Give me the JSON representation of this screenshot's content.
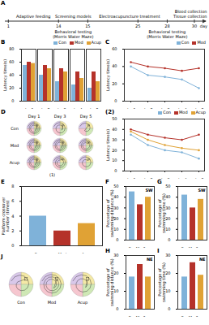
{
  "figure": {
    "timeline": {
      "label": "A",
      "stages": [
        [
          "Adaptive feeding"
        ],
        [
          "Screening models"
        ],
        [
          "Electroacupuncture treatment"
        ],
        [
          "Blood collection",
          "Tissue collection"
        ]
      ],
      "days": [
        "1",
        "14",
        "15",
        "25",
        "28",
        "30"
      ],
      "unit": "day",
      "testing": [
        [
          "Behavioral testing",
          "(Morris Water Maze)"
        ],
        [
          "Behavioral testing",
          "(Morris Water Maze)"
        ]
      ]
    },
    "paths_D": {
      "label": "D",
      "sublabel": "(1)",
      "groups": [
        "Con",
        "Mod",
        "Acup"
      ],
      "days": [
        "Day 1",
        "Day 3",
        "Day 5"
      ]
    },
    "paths_J": {
      "label": "J",
      "groups": [
        "Con",
        "Mod",
        "Acup"
      ]
    }
  },
  "chart_data": [
    {
      "label": "B",
      "type": "bar",
      "y_label": "Latency time(s)",
      "categories": [
        "day1",
        "day2",
        "day3",
        "day4",
        "day5"
      ],
      "series": [
        {
          "name": "Con",
          "color": "#7fb2d9",
          "values": [
            55,
            40,
            30,
            25,
            20
          ]
        },
        {
          "name": "Mod",
          "color": "#b5322a",
          "values": [
            60,
            55,
            50,
            45,
            45
          ]
        },
        {
          "name": "Acup",
          "color": "#e0a235",
          "values": [
            58,
            50,
            45,
            35,
            30
          ]
        }
      ],
      "ylim": [
        0,
        80
      ],
      "yticks": [
        0,
        20,
        40,
        60,
        80
      ],
      "grid": false,
      "legend": "top-right"
    },
    {
      "label": "C",
      "type": "line",
      "y_label": "Latency time(s)",
      "categories": [
        "day1",
        "day2",
        "day3",
        "day4",
        "day5"
      ],
      "series": [
        {
          "name": "Con",
          "color": "#7fb2d9",
          "values": [
            40,
            30,
            28,
            25,
            15
          ]
        },
        {
          "name": "Mod",
          "color": "#b5322a",
          "values": [
            45,
            40,
            38,
            35,
            38
          ]
        }
      ],
      "ylim": [
        0,
        60
      ],
      "yticks": [
        0,
        20,
        40,
        60
      ],
      "grid": false,
      "legend": "top-right"
    },
    {
      "label": "(2)",
      "type": "line",
      "y_label": "Latency time(s)",
      "categories": [
        "day1",
        "day2",
        "day3",
        "day4",
        "day5"
      ],
      "series": [
        {
          "name": "Con",
          "color": "#7fb2d9",
          "values": [
            35,
            25,
            20,
            18,
            12
          ]
        },
        {
          "name": "Mod",
          "color": "#b5322a",
          "values": [
            40,
            35,
            32,
            30,
            35
          ]
        },
        {
          "name": "Acup",
          "color": "#e0a235",
          "values": [
            38,
            30,
            25,
            22,
            20
          ]
        }
      ],
      "ylim": [
        0,
        50
      ],
      "yticks": [
        0,
        10,
        20,
        30,
        40,
        50
      ],
      "grid": false,
      "legend": "top-right"
    },
    {
      "label": "E",
      "type": "bar",
      "y_label": "Platform crossover number (times)",
      "categories": [
        "Con",
        "Mod",
        "Acup"
      ],
      "values": [
        4,
        2,
        3
      ],
      "colors": [
        "#7fb2d9",
        "#b5322a",
        "#e0a235"
      ],
      "ylim": [
        0,
        8
      ],
      "yticks": [
        0,
        2,
        4,
        6,
        8
      ],
      "grid": false
    },
    {
      "label": "F",
      "type": "bar",
      "y_label": "Percentage of swimming distance (%)",
      "annotations": [
        "SW"
      ],
      "categories": [
        "Con",
        "Mod",
        "Acup"
      ],
      "values": [
        45,
        33,
        40
      ],
      "colors": [
        "#7fb2d9",
        "#b5322a",
        "#e0a235"
      ],
      "ylim": [
        0,
        50
      ],
      "yticks": [
        0,
        10,
        20,
        30,
        40,
        50
      ],
      "grid": false
    },
    {
      "label": "G",
      "type": "bar",
      "y_label": "Percentage of swimming time (%)",
      "annotations": [
        "SW"
      ],
      "categories": [
        "Con",
        "Mod",
        "Acup"
      ],
      "values": [
        42,
        30,
        38
      ],
      "colors": [
        "#7fb2d9",
        "#b5322a",
        "#e0a235"
      ],
      "ylim": [
        0,
        50
      ],
      "yticks": [
        0,
        10,
        20,
        30,
        40,
        50
      ],
      "grid": false
    },
    {
      "label": "H",
      "type": "bar",
      "y_label": "Percentage of swimming distance (%)",
      "annotations": [
        "NE"
      ],
      "categories": [
        "Con",
        "Mod",
        "Acup"
      ],
      "values": [
        18,
        25,
        18
      ],
      "colors": [
        "#7fb2d9",
        "#b5322a",
        "#e0a235"
      ],
      "ylim": [
        0,
        30
      ],
      "yticks": [
        0,
        10,
        20,
        30
      ],
      "grid": false
    },
    {
      "label": "I",
      "type": "bar",
      "y_label": "Percentage of swimming time (%)",
      "annotations": [
        "NE"
      ],
      "categories": [
        "Con",
        "Mod",
        "Acup"
      ],
      "values": [
        18,
        26,
        19
      ],
      "colors": [
        "#7fb2d9",
        "#b5322a",
        "#e0a235"
      ],
      "ylim": [
        0,
        30
      ],
      "yticks": [
        0,
        10,
        20,
        30
      ],
      "grid": false
    }
  ]
}
